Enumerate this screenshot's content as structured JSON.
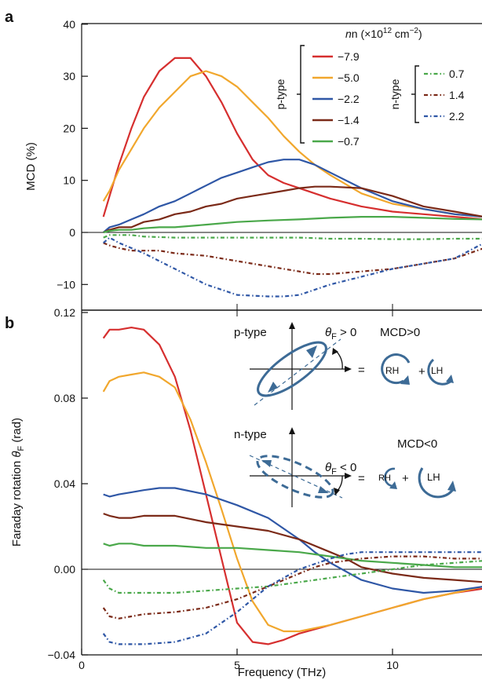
{
  "panel_labels": [
    "a",
    "b"
  ],
  "colors": {
    "-7.9": "#d62f2f",
    "-5.0": "#f1a72d",
    "-2.2": "#2f57a6",
    "-1.4": "#7b2a18",
    "-0.7": "#4aa84a",
    "0.7": "#4aa84a",
    "1.4": "#7b2a18",
    "2.2": "#2f57a6",
    "diagram": "#3d6b96"
  },
  "legend": {
    "title_main": "n (×10",
    "title_sup": "12",
    "title_unit": " cm",
    "title_sup2": "−2",
    "title_close": ")",
    "p_label": "p-type",
    "n_label": "n-type",
    "p_entries": [
      "−7.9",
      "−5.0",
      "−2.2",
      "−1.4",
      "−0.7"
    ],
    "n_entries": [
      "0.7",
      "1.4",
      "2.2"
    ]
  },
  "diagram": {
    "ptype_label": "p-type",
    "ntype_label": "n-type",
    "theta_sym": "θ",
    "theta_sub": "F",
    "theta_pos": " > 0",
    "theta_neg": " < 0",
    "mcd_pos": "MCD>0",
    "mcd_neg": "MCD<0",
    "equals": "=",
    "plus": "+",
    "rh": "RH",
    "lh": "LH"
  },
  "chart_data": [
    {
      "type": "line",
      "panel": "a",
      "xlabel": "",
      "ylabel": "MCD (%)",
      "xlim": [
        0,
        13
      ],
      "ylim": [
        -15,
        40
      ],
      "yticks": [
        -10,
        0,
        10,
        20,
        30,
        40
      ],
      "ytick_labels": [
        "−10",
        "0",
        "10",
        "20",
        "30",
        "40"
      ],
      "series": [
        {
          "name": "−7.9",
          "style": "solid",
          "x": [
            0.7,
            0.9,
            1.2,
            1.6,
            2.0,
            2.5,
            3.0,
            3.5,
            4.0,
            4.5,
            5.0,
            5.5,
            6.0,
            6.5,
            7.0,
            7.5,
            8.0,
            9.0,
            10.0,
            11.0,
            12.0,
            13.0
          ],
          "y": [
            3,
            7,
            13,
            20,
            26,
            31,
            33.5,
            33.5,
            30,
            25,
            19,
            14,
            11,
            9.5,
            8.5,
            7.5,
            6.5,
            5,
            4,
            3.5,
            3,
            2.5
          ]
        },
        {
          "name": "−5.0",
          "style": "solid",
          "x": [
            0.7,
            0.9,
            1.2,
            1.6,
            2.0,
            2.5,
            3.0,
            3.5,
            4.0,
            4.5,
            5.0,
            5.5,
            6.0,
            6.5,
            7.0,
            7.5,
            8.0,
            9.0,
            10.0,
            11.0,
            12.0,
            13.0
          ],
          "y": [
            6,
            8,
            12,
            16,
            20,
            24,
            27,
            30,
            31,
            30,
            28,
            25,
            22,
            18.5,
            15.5,
            13,
            11,
            7.5,
            5.5,
            4.5,
            3.5,
            3
          ]
        },
        {
          "name": "−2.2",
          "style": "solid",
          "x": [
            0.7,
            0.9,
            1.2,
            1.6,
            2.0,
            2.5,
            3.0,
            3.5,
            4.0,
            4.5,
            5.0,
            5.5,
            6.0,
            6.5,
            7.0,
            7.5,
            8.0,
            9.0,
            10.0,
            11.0,
            12.0,
            13.0
          ],
          "y": [
            0,
            1,
            1.5,
            2.5,
            3.5,
            5,
            6,
            7.5,
            9,
            10.5,
            11.5,
            12.5,
            13.5,
            14,
            14,
            13,
            11.5,
            8.5,
            6,
            4.5,
            3.5,
            3
          ]
        },
        {
          "name": "−1.4",
          "style": "solid",
          "x": [
            0.7,
            0.9,
            1.2,
            1.6,
            2.0,
            2.5,
            3.0,
            3.5,
            4.0,
            4.5,
            5.0,
            5.5,
            6.0,
            6.5,
            7.0,
            7.5,
            8.0,
            9.0,
            10.0,
            11.0,
            12.0,
            13.0
          ],
          "y": [
            0,
            0.5,
            1,
            1,
            2,
            2.5,
            3.5,
            4,
            5,
            5.5,
            6.5,
            7,
            7.5,
            8,
            8.5,
            8.8,
            8.8,
            8.5,
            7,
            5,
            4,
            3
          ]
        },
        {
          "name": "−0.7",
          "style": "solid",
          "x": [
            0.7,
            0.9,
            1.2,
            1.6,
            2.0,
            2.5,
            3.0,
            4.0,
            5.0,
            6.0,
            7.0,
            8.0,
            9.0,
            10.0,
            11.0,
            12.0,
            13.0
          ],
          "y": [
            0,
            0.3,
            0.5,
            0.5,
            0.8,
            1,
            1,
            1.5,
            2,
            2.3,
            2.5,
            2.8,
            3,
            3,
            2.8,
            2.6,
            2.5
          ]
        },
        {
          "name": "0.7",
          "style": "dashdot",
          "x": [
            0.7,
            0.9,
            1.2,
            1.6,
            2.0,
            3.0,
            4.0,
            5.0,
            6.0,
            7.0,
            8.0,
            9.0,
            10.0,
            11.0,
            12.0,
            13.0
          ],
          "y": [
            -1,
            -0.5,
            -0.5,
            -0.5,
            -0.8,
            -1,
            -1,
            -1,
            -1,
            -1,
            -1.2,
            -1.2,
            -1.3,
            -1.3,
            -1.2,
            -1.2
          ]
        },
        {
          "name": "1.4",
          "style": "dashdot",
          "x": [
            0.7,
            0.9,
            1.2,
            1.6,
            2.0,
            2.5,
            3.0,
            4.0,
            5.0,
            6.0,
            7.0,
            7.5,
            8.0,
            9.0,
            10.0,
            11.0,
            12.0,
            13.0
          ],
          "y": [
            -2,
            -2.5,
            -3,
            -3.5,
            -3.5,
            -3.5,
            -4,
            -4.5,
            -5.5,
            -6.5,
            -7.5,
            -8,
            -8,
            -7.5,
            -7,
            -6,
            -5,
            -3
          ]
        },
        {
          "name": "2.2",
          "style": "dashdot",
          "x": [
            0.7,
            0.9,
            1.2,
            1.6,
            2.0,
            3.0,
            4.0,
            4.5,
            5.0,
            6.0,
            6.5,
            7.0,
            8.0,
            9.0,
            10.0,
            11.0,
            12.0,
            13.0
          ],
          "y": [
            -2,
            -1,
            -2,
            -3,
            -4,
            -7,
            -10,
            -11,
            -12,
            -12.3,
            -12.3,
            -12,
            -10,
            -8.5,
            -7,
            -6,
            -5,
            -2
          ]
        }
      ]
    },
    {
      "type": "line",
      "panel": "b",
      "xlabel": "Frequency (THz)",
      "ylabel": "Faraday rotation θF (rad)",
      "xlim": [
        0,
        13
      ],
      "ylim": [
        -0.04,
        0.16
      ],
      "xticks": [
        0,
        5,
        10
      ],
      "xtick_labels": [
        "0",
        "5",
        "10"
      ],
      "yticks": [
        -0.04,
        0.0,
        0.04,
        0.08,
        0.12
      ],
      "ytick_labels": [
        "−0.04",
        "0.00",
        "0.04",
        "0.08",
        "0.12"
      ],
      "series": [
        {
          "name": "−7.9",
          "style": "solid",
          "x": [
            0.7,
            0.9,
            1.2,
            1.6,
            2.0,
            2.5,
            3.0,
            3.5,
            4.0,
            4.5,
            5.0,
            5.5,
            6.0,
            6.5,
            7.0,
            8.0,
            9.0,
            10.0,
            11.0,
            12.0,
            13.0
          ],
          "y": [
            0.108,
            0.112,
            0.112,
            0.113,
            0.112,
            0.105,
            0.09,
            0.065,
            0.035,
            0.005,
            -0.025,
            -0.034,
            -0.035,
            -0.033,
            -0.03,
            -0.026,
            -0.022,
            -0.018,
            -0.014,
            -0.011,
            -0.009
          ]
        },
        {
          "name": "−5.0",
          "style": "solid",
          "x": [
            0.7,
            0.9,
            1.2,
            1.6,
            2.0,
            2.5,
            3.0,
            3.5,
            4.0,
            4.5,
            5.0,
            5.5,
            6.0,
            6.5,
            7.0,
            8.0,
            9.0,
            10.0,
            11.0,
            12.0,
            13.0
          ],
          "y": [
            0.083,
            0.088,
            0.09,
            0.091,
            0.092,
            0.09,
            0.085,
            0.07,
            0.05,
            0.028,
            0.005,
            -0.015,
            -0.026,
            -0.029,
            -0.029,
            -0.026,
            -0.022,
            -0.018,
            -0.014,
            -0.011,
            -0.008
          ]
        },
        {
          "name": "−2.2",
          "style": "solid",
          "x": [
            0.7,
            0.9,
            1.2,
            1.6,
            2.0,
            2.5,
            3.0,
            4.0,
            5.0,
            6.0,
            7.0,
            7.5,
            8.0,
            9.0,
            10.0,
            11.0,
            12.0,
            13.0
          ],
          "y": [
            0.035,
            0.034,
            0.035,
            0.036,
            0.037,
            0.038,
            0.038,
            0.035,
            0.03,
            0.024,
            0.014,
            0.008,
            0.003,
            -0.005,
            -0.009,
            -0.011,
            -0.01,
            -0.008
          ]
        },
        {
          "name": "−1.4",
          "style": "solid",
          "x": [
            0.7,
            0.9,
            1.2,
            1.6,
            2.0,
            3.0,
            4.0,
            5.0,
            6.0,
            7.0,
            8.0,
            8.5,
            9.0,
            10.0,
            11.0,
            12.0,
            13.0
          ],
          "y": [
            0.026,
            0.025,
            0.024,
            0.024,
            0.025,
            0.025,
            0.022,
            0.02,
            0.018,
            0.014,
            0.008,
            0.005,
            0.001,
            -0.002,
            -0.004,
            -0.005,
            -0.006
          ]
        },
        {
          "name": "−0.7",
          "style": "solid",
          "x": [
            0.7,
            0.9,
            1.2,
            1.6,
            2.0,
            3.0,
            4.0,
            5.0,
            6.0,
            7.0,
            8.0,
            9.0,
            10.0,
            11.0,
            12.0,
            13.0
          ],
          "y": [
            0.012,
            0.011,
            0.012,
            0.012,
            0.011,
            0.011,
            0.01,
            0.01,
            0.009,
            0.008,
            0.006,
            0.004,
            0.003,
            0.002,
            0.001,
            0.001
          ]
        },
        {
          "name": "0.7",
          "style": "dashdot",
          "x": [
            0.7,
            0.9,
            1.2,
            1.6,
            2.0,
            3.0,
            4.0,
            5.0,
            6.0,
            7.0,
            8.0,
            9.0,
            10.0,
            11.0,
            12.0,
            13.0
          ],
          "y": [
            -0.005,
            -0.009,
            -0.011,
            -0.011,
            -0.011,
            -0.011,
            -0.01,
            -0.009,
            -0.008,
            -0.006,
            -0.004,
            -0.002,
            0.0,
            0.002,
            0.003,
            0.004
          ]
        },
        {
          "name": "1.4",
          "style": "dashdot",
          "x": [
            0.7,
            0.9,
            1.2,
            1.6,
            2.0,
            3.0,
            4.0,
            5.0,
            6.0,
            7.0,
            7.5,
            8.0,
            9.0,
            10.0,
            11.0,
            12.0,
            13.0
          ],
          "y": [
            -0.018,
            -0.022,
            -0.023,
            -0.022,
            -0.021,
            -0.02,
            -0.018,
            -0.014,
            -0.008,
            -0.002,
            0.001,
            0.003,
            0.005,
            0.006,
            0.006,
            0.005,
            0.005
          ]
        },
        {
          "name": "2.2",
          "style": "dashdot",
          "x": [
            0.7,
            0.9,
            1.2,
            1.6,
            2.0,
            3.0,
            4.0,
            5.0,
            6.0,
            7.0,
            8.0,
            8.5,
            9.0,
            10.0,
            11.0,
            12.0,
            13.0
          ],
          "y": [
            -0.03,
            -0.034,
            -0.035,
            -0.035,
            -0.035,
            -0.034,
            -0.03,
            -0.02,
            -0.008,
            0.0,
            0.005,
            0.007,
            0.008,
            0.008,
            0.008,
            0.008,
            0.008
          ]
        }
      ]
    }
  ]
}
